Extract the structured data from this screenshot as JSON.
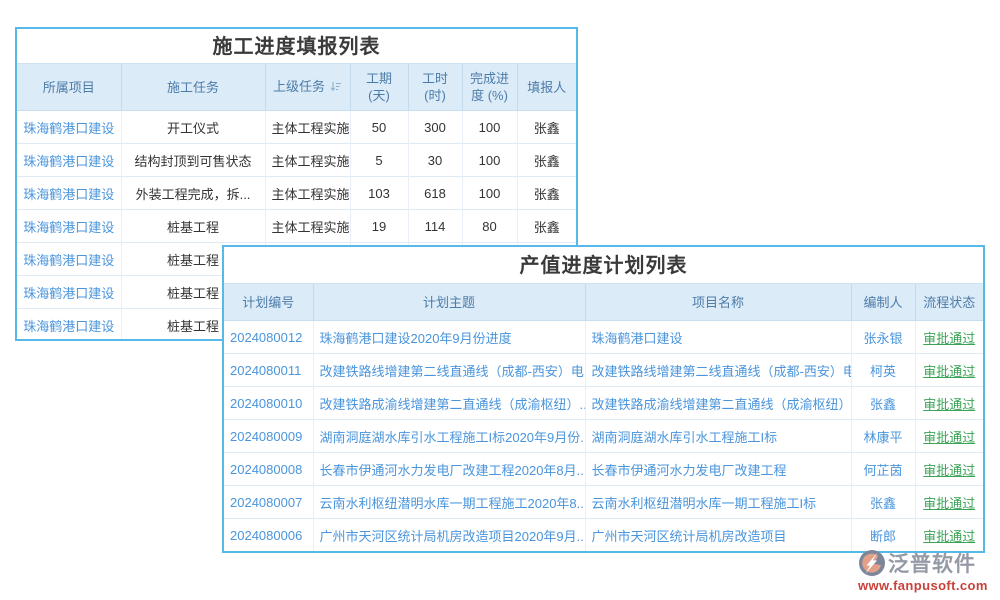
{
  "accent_colors": {
    "panel_border": "#57b9e8",
    "header_bg": "#dcebf8",
    "header_text": "#4d7ca8",
    "link_blue": "#4a95dc",
    "status_green": "#3aa356",
    "watermark_grey": "#959ba6",
    "watermark_red": "#c9413a"
  },
  "table1": {
    "title": "施工进度填报列表",
    "columns": [
      "所属项目",
      "施工任务",
      "上级任务",
      "工期 (天)",
      "工时 (时)",
      "完成进度 (%)",
      "填报人"
    ],
    "sorted_column": "上级任务",
    "rows": [
      [
        "珠海鹤港口建设",
        "开工仪式",
        "主体工程实施",
        "50",
        "300",
        "100",
        "张鑫"
      ],
      [
        "珠海鹤港口建设",
        "结构封顶到可售状态",
        "主体工程实施",
        "5",
        "30",
        "100",
        "张鑫"
      ],
      [
        "珠海鹤港口建设",
        "外装工程完成，拆...",
        "主体工程实施",
        "103",
        "618",
        "100",
        "张鑫"
      ],
      [
        "珠海鹤港口建设",
        "桩基工程",
        "主体工程实施",
        "19",
        "114",
        "80",
        "张鑫"
      ],
      [
        "珠海鹤港口建设",
        "桩基工程",
        "",
        "",
        "",
        "",
        ""
      ],
      [
        "珠海鹤港口建设",
        "桩基工程",
        "",
        "",
        "",
        "",
        ""
      ],
      [
        "珠海鹤港口建设",
        "桩基工程",
        "",
        "",
        "",
        "",
        ""
      ]
    ]
  },
  "table2": {
    "title": "产值进度计划列表",
    "columns": [
      "计划编号",
      "计划主题",
      "项目名称",
      "编制人",
      "流程状态"
    ],
    "rows": [
      [
        "2024080012",
        "珠海鹤港口建设2020年9月份进度",
        "珠海鹤港口建设",
        "张永银",
        "审批通过"
      ],
      [
        "2024080011",
        "改建铁路线增建第二线直通线（成都-西安）电...",
        "改建铁路线增建第二线直通线（成都-西安）电...",
        "柯英",
        "审批通过"
      ],
      [
        "2024080010",
        "改建铁路成渝线增建第二直通线（成渝枢纽）...",
        "改建铁路成渝线增建第二直通线（成渝枢纽）...",
        "张鑫",
        "审批通过"
      ],
      [
        "2024080009",
        "湖南洞庭湖水库引水工程施工I标2020年9月份...",
        "湖南洞庭湖水库引水工程施工I标",
        "林康平",
        "审批通过"
      ],
      [
        "2024080008",
        "长春市伊通河水力发电厂改建工程2020年8月...",
        "长春市伊通河水力发电厂改建工程",
        "何芷茵",
        "审批通过"
      ],
      [
        "2024080007",
        "云南水利枢纽潜明水库一期工程施工2020年8...",
        "云南水利枢纽潜明水库一期工程施工I标",
        "张鑫",
        "审批通过"
      ],
      [
        "2024080006",
        "广州市天河区统计局机房改造项目2020年9月...",
        "广州市天河区统计局机房改造项目",
        "断郎",
        "审批通过"
      ]
    ]
  },
  "watermark": {
    "name": "泛普软件",
    "url": "www.fanpusoft.com"
  }
}
